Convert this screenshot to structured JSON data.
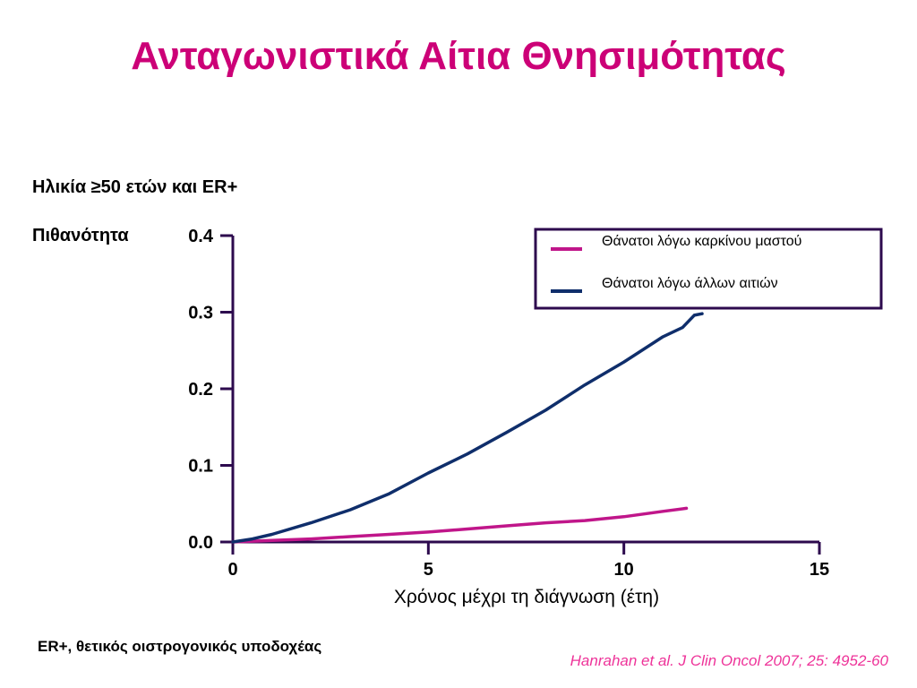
{
  "slide": {
    "title": "Ανταγωνιστικά Αίτια Θνησιμότητας",
    "subtitle": "Ηλικία ≥50 ετών και ER+",
    "footnote": "ER+, θετικός οιστρογονικός υποδοχέας",
    "citation": "Hanrahan et al. J Clin Oncol 2007; 25: 4952-60"
  },
  "colors": {
    "title": "#cc0077",
    "axis": "#2d0a4e",
    "series_breast": "#c0168a",
    "series_other": "#0f2e6b",
    "citation": "#ee3399"
  },
  "chart_data": {
    "type": "line",
    "xlabel": "Χρόνος μέχρι τη διάγνωση (έτη)",
    "ylabel": "Πιθανότητα",
    "xlim": [
      0,
      15
    ],
    "ylim": [
      0,
      0.4
    ],
    "xticks": [
      "0",
      "5",
      "10",
      "15"
    ],
    "yticks": [
      "0.0",
      "0.1",
      "0.2",
      "0.3",
      "0.4"
    ],
    "grid": false,
    "legend_position": "top-right",
    "series": [
      {
        "name": "Θάνατοι λόγω καρκίνου μαστού",
        "color": "#c0168a",
        "x": [
          0,
          1,
          2,
          3,
          4,
          5,
          6,
          7,
          8,
          9,
          10,
          11,
          11.6
        ],
        "y": [
          0,
          0.002,
          0.004,
          0.007,
          0.01,
          0.013,
          0.017,
          0.021,
          0.025,
          0.028,
          0.033,
          0.04,
          0.044
        ]
      },
      {
        "name": "Θάνατοι λόγω άλλων αιτιών",
        "color": "#0f2e6b",
        "x": [
          0,
          0.5,
          1,
          2,
          3,
          4,
          5,
          6,
          7,
          8,
          9,
          10,
          11,
          11.5,
          11.8,
          12
        ],
        "y": [
          0,
          0.004,
          0.01,
          0.025,
          0.042,
          0.063,
          0.09,
          0.115,
          0.143,
          0.172,
          0.205,
          0.235,
          0.268,
          0.28,
          0.296,
          0.298
        ]
      }
    ]
  }
}
